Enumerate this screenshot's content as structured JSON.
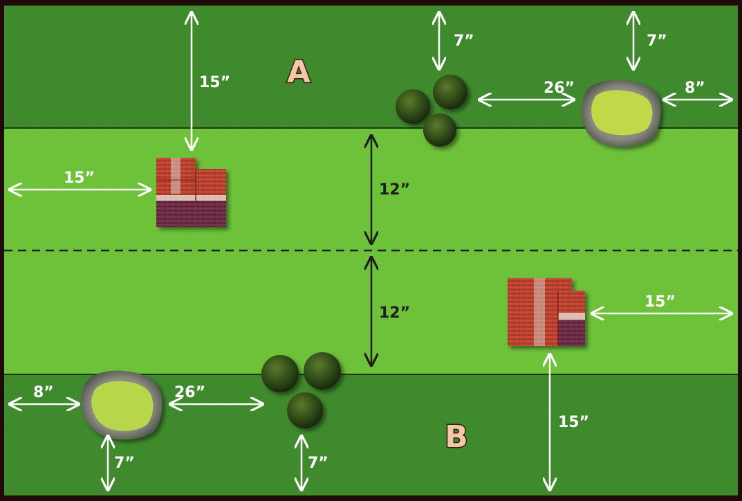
{
  "deployment_zones": {
    "top": {
      "label": "A"
    },
    "bottom": {
      "label": "B"
    }
  },
  "measurements": {
    "a_zone_depth": "15”",
    "a_building_offset": "15”",
    "center_gap_top": "12”",
    "center_gap_bottom": "12”",
    "a_forest_offset": "7”",
    "a_pond_offset": "7”",
    "a_forest_to_pond": "26”",
    "a_pond_to_edge": "8”",
    "b_building_offset": "15”",
    "b_zone_depth": "15”",
    "b_pond_to_edge": "8”",
    "b_pond_to_forest": "26”",
    "b_pond_offset": "7”",
    "b_forest_offset": "7”"
  },
  "terrain_icons": [
    "building-icon",
    "forest-icon",
    "pond-icon"
  ],
  "colors": {
    "zone_dark": "#3f8a2c",
    "field_light": "#6ec23a",
    "border": "#1e0c08",
    "label_fill": "#f2c9a8",
    "brick": "#b33a2a",
    "forest": "#2f4a16"
  }
}
